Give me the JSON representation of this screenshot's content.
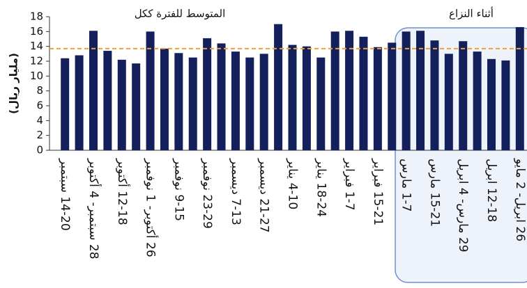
{
  "chart_data": {
    "type": "bar",
    "y_label": "(مليار ريال)",
    "annotations": [
      "المتوسط  للفترة ككل",
      "أثناء النزاع"
    ],
    "categories": [
      "14-20 سبتمبر",
      null,
      "28 سبتمبر- 4 أكتوبر",
      null,
      "12-18 أكتوبر",
      null,
      "26 أكتوبر- 1 نوفمبر",
      null,
      "9-15 نوفمبر",
      null,
      "23-29 نوفمبر",
      null,
      "7-13 ديسمبر",
      null,
      "21-27 ديسمبر",
      null,
      "4-10 يناير",
      null,
      "18-24 يناير",
      null,
      "1-7 فبراير",
      null,
      "15-21 فبراير",
      null,
      "1-7 مارس",
      null,
      "15-21 مارس",
      null,
      "29 مارس- 4 ابريل",
      null,
      "12-18 ابريل",
      null,
      "26 ابريل- 2 مايو"
    ],
    "values": [
      12.4,
      12.8,
      16.1,
      13.4,
      12.2,
      11.7,
      16.0,
      13.7,
      13.1,
      12.5,
      15.1,
      14.4,
      13.3,
      12.5,
      13.0,
      17.0,
      14.2,
      14.0,
      12.5,
      16.0,
      16.1,
      15.3,
      13.9,
      14.5,
      16.0,
      16.1,
      14.8,
      13.0,
      14.7,
      13.3,
      12.3,
      12.1,
      16.6
    ],
    "average": 13.7,
    "color": "#13205b",
    "average_color": "#f0a030",
    "ylim": [
      0,
      18
    ],
    "yticks": [
      0,
      2,
      4,
      6,
      8,
      10,
      12,
      14,
      16,
      18
    ]
  }
}
